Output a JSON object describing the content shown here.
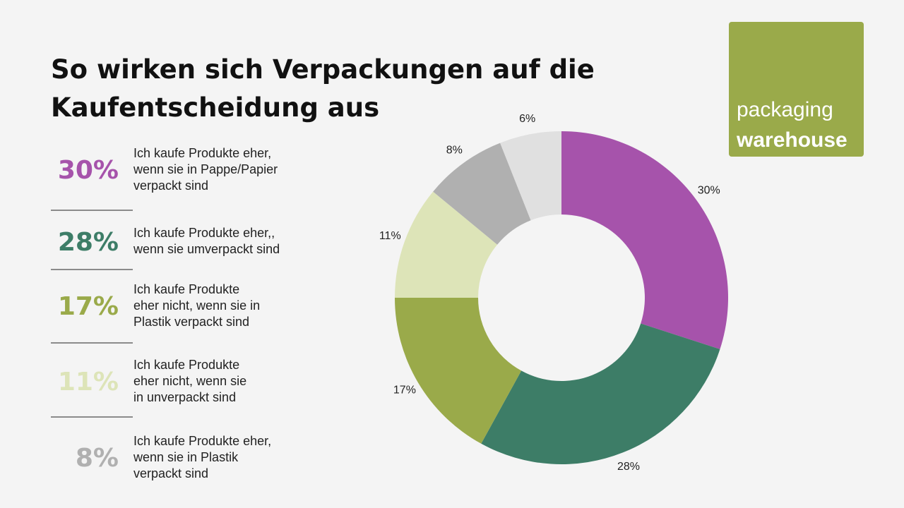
{
  "chart_data": {
    "type": "donut",
    "title": "So wirken sich Verpackungen auf die Kaufentscheidung aus",
    "categories": [
      "Ich kaufe Produkte eher,\nwenn sie in Pappe/Papier\nverpackt sind",
      "Ich kaufe Produkte eher,,\nwenn sie umverpackt sind",
      "Ich kaufe Produkte\neher nicht, wenn sie in\nPlastik verpackt sind",
      "Ich kaufe Produkte\neher nicht, wenn sie\nin unverpackt sind",
      "Ich kaufe Produkte eher,\nwenn sie in Plastik\nverpackt sind",
      null
    ],
    "values": [
      30,
      28,
      17,
      11,
      8,
      6
    ],
    "value_labels": [
      "30%",
      "28%",
      "17%",
      "11%",
      "8%",
      "6%"
    ],
    "colors": [
      "#a653ab",
      "#3d7d67",
      "#9aaa4a",
      "#dde4b8",
      "#b0b0b0",
      "#e0e0e0"
    ]
  },
  "logo": {
    "line1": "packaging",
    "line2": "warehouse"
  }
}
